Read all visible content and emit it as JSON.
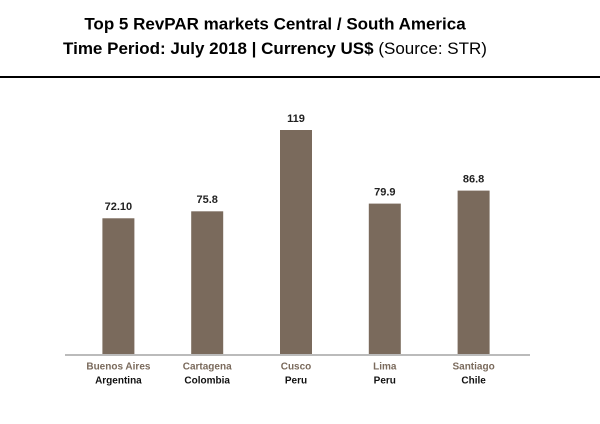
{
  "chart_data": {
    "type": "bar",
    "title": "Top 5 RevPAR markets Central / South America",
    "subtitle": "Time Period: July 2018 | Currency US$",
    "source": "(Source: STR)",
    "categories": [
      "Buenos Aires",
      "Cartagena",
      "Cusco",
      "Lima",
      "Santiago"
    ],
    "countries": [
      "Argentina",
      "Colombia",
      "Peru",
      "Peru",
      "Chile"
    ],
    "values": [
      72.1,
      75.8,
      119,
      79.9,
      86.8
    ],
    "value_labels": [
      "72.10",
      "75.8",
      "119",
      "79.9",
      "86.8"
    ],
    "color": "#7a6a5c"
  }
}
